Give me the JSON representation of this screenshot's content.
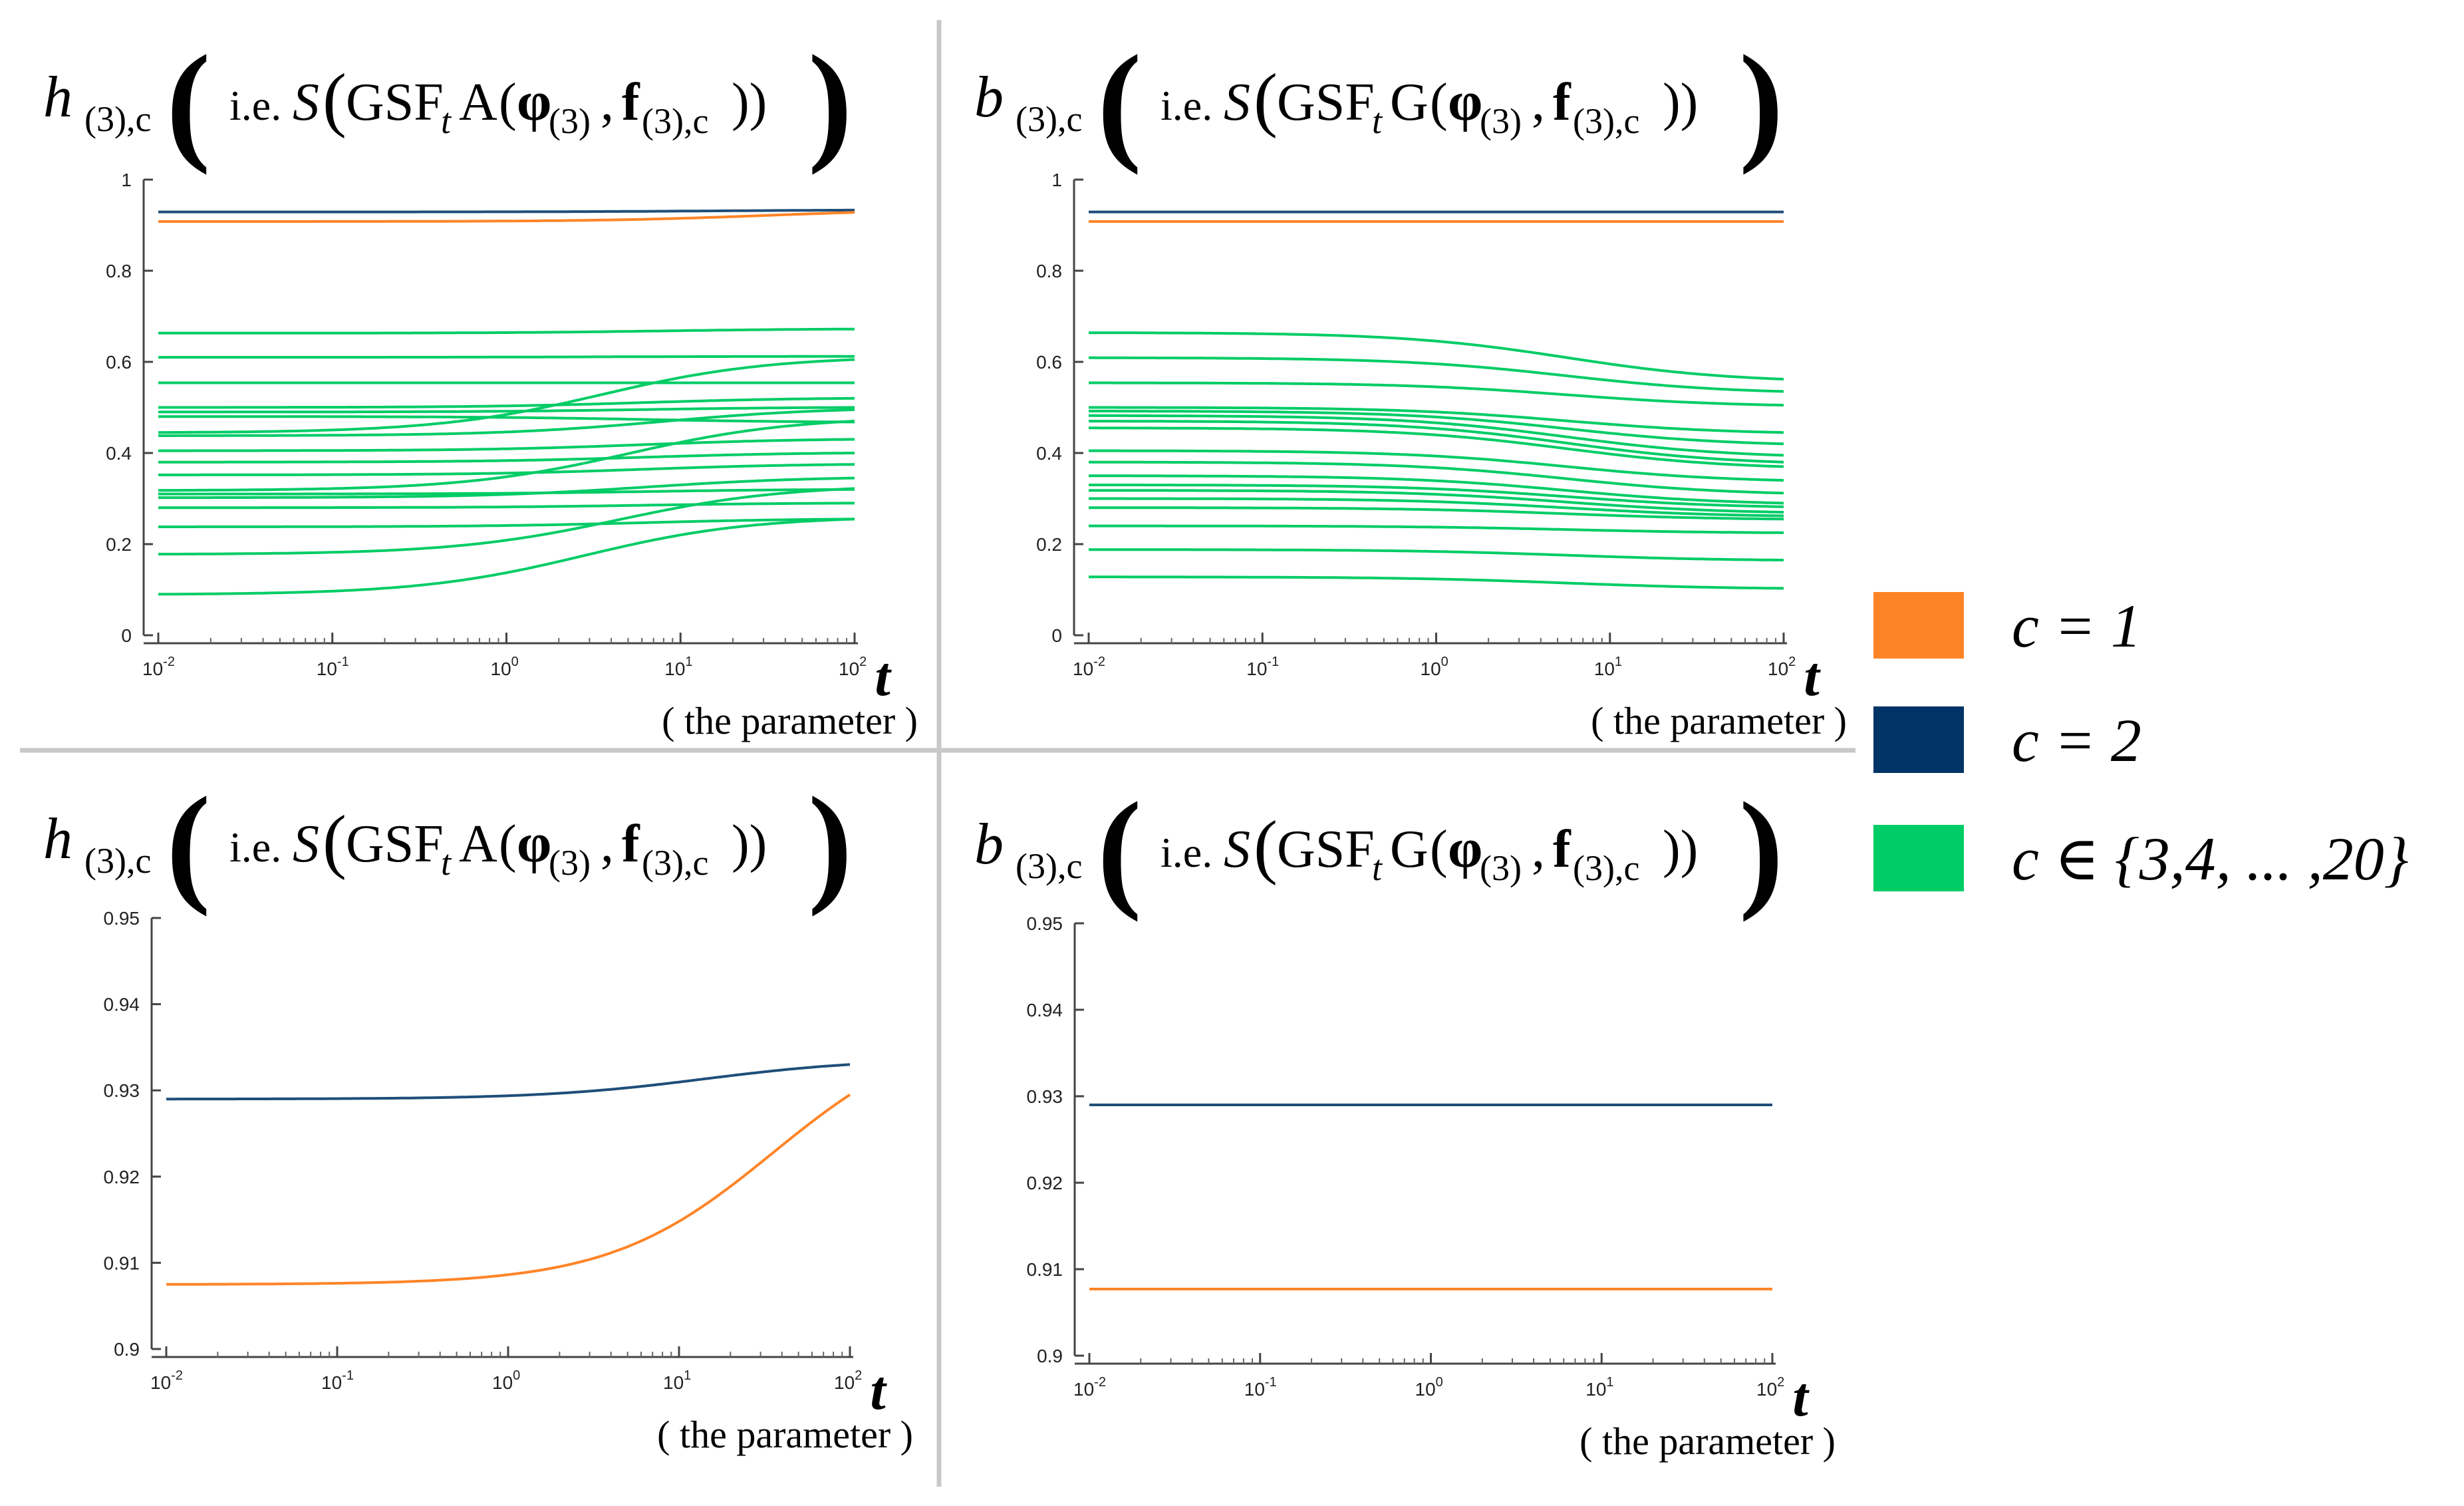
{
  "legend": {
    "items": [
      {
        "label": "c = 1",
        "color": "#ff8427"
      },
      {
        "label": "c = 2",
        "color": "#003366"
      },
      {
        "label": "c ∈ {3,4, ... ,20}",
        "color": "#00cc66"
      }
    ]
  },
  "chart_data": [
    {
      "type": "line",
      "title": {
        "symbol": "h",
        "sub": "(3),c",
        "ie": "i.e.",
        "S": "S",
        "gsf": "GSF",
        "t": "t",
        "op": "A",
        "phi": "φ",
        "phisub": "(3)",
        "f": "f",
        "fsub": "(3),c"
      },
      "xscale": "log",
      "xlim": [
        0.01,
        100
      ],
      "ylim": [
        0,
        1
      ],
      "xlabel": "t",
      "xlabel_note": "( the parameter )",
      "yticks": [
        "0",
        "0.2",
        "0.4",
        "0.6",
        "0.8",
        "1"
      ],
      "xticks": [
        {
          "base": "10",
          "exp": "-2"
        },
        {
          "base": "10",
          "exp": "-1"
        },
        {
          "base": "10",
          "exp": "0"
        },
        {
          "base": "10",
          "exp": "1"
        },
        {
          "base": "10",
          "exp": "2"
        }
      ],
      "series": [
        {
          "name": "c = 2",
          "color": "#1f4e79",
          "start": 0.929,
          "end": 0.933,
          "mid": 1.2
        },
        {
          "name": "c = 1",
          "color": "#ff8427",
          "start": 0.908,
          "end": 0.928,
          "mid": 1.5
        },
        {
          "name": "c = 3",
          "color": "#00cc66",
          "start": 0.663,
          "end": 0.672,
          "mid": 0.9
        },
        {
          "name": "c = 4",
          "color": "#00cc66",
          "start": 0.61,
          "end": 0.612,
          "mid": 0.5
        },
        {
          "name": "c = 5",
          "color": "#00cc66",
          "start": 0.554,
          "end": 0.554,
          "mid": 0.5
        },
        {
          "name": "c = 6",
          "color": "#00cc66",
          "start": 0.5,
          "end": 0.52,
          "mid": 0.8
        },
        {
          "name": "c = 7",
          "color": "#00cc66",
          "start": 0.49,
          "end": 0.5,
          "mid": 0.8
        },
        {
          "name": "c = 8",
          "color": "#00cc66",
          "start": 0.48,
          "end": 0.468,
          "mid": 0.8
        },
        {
          "name": "c = 9",
          "color": "#00cc66",
          "start": 0.445,
          "end": 0.605,
          "mid": 0.55
        },
        {
          "name": "c = 10",
          "color": "#00cc66",
          "start": 0.438,
          "end": 0.495,
          "mid": 0.9
        },
        {
          "name": "c = 11",
          "color": "#00cc66",
          "start": 0.405,
          "end": 0.43,
          "mid": 0.8
        },
        {
          "name": "c = 12",
          "color": "#00cc66",
          "start": 0.38,
          "end": 0.4,
          "mid": 0.8
        },
        {
          "name": "c = 13",
          "color": "#00cc66",
          "start": 0.352,
          "end": 0.375,
          "mid": 0.8
        },
        {
          "name": "c = 14",
          "color": "#00cc66",
          "start": 0.318,
          "end": 0.47,
          "mid": 0.7
        },
        {
          "name": "c = 15",
          "color": "#00cc66",
          "start": 0.31,
          "end": 0.32,
          "mid": 0.8
        },
        {
          "name": "c = 16",
          "color": "#00cc66",
          "start": 0.302,
          "end": 0.345,
          "mid": 0.8
        },
        {
          "name": "c = 17",
          "color": "#00cc66",
          "start": 0.28,
          "end": 0.29,
          "mid": 0.8
        },
        {
          "name": "c = 18",
          "color": "#00cc66",
          "start": 0.238,
          "end": 0.255,
          "mid": 0.8
        },
        {
          "name": "c = 19",
          "color": "#00cc66",
          "start": 0.178,
          "end": 0.322,
          "mid": 0.65
        },
        {
          "name": "c = 20",
          "color": "#00cc66",
          "start": 0.09,
          "end": 0.255,
          "mid": 0.45
        }
      ]
    },
    {
      "type": "line",
      "title": {
        "symbol": "b",
        "sub": "(3),c",
        "ie": "i.e.",
        "S": "S",
        "gsf": "GSF",
        "t": "t",
        "op": "G",
        "phi": "φ",
        "phisub": "(3)",
        "f": "f",
        "fsub": "(3),c"
      },
      "xscale": "log",
      "xlim": [
        0.01,
        100
      ],
      "ylim": [
        0,
        1
      ],
      "xlabel": "t",
      "xlabel_note": "( the parameter )",
      "yticks": [
        "0",
        "0.2",
        "0.4",
        "0.6",
        "0.8",
        "1"
      ],
      "xticks": [
        {
          "base": "10",
          "exp": "-2"
        },
        {
          "base": "10",
          "exp": "-1"
        },
        {
          "base": "10",
          "exp": "0"
        },
        {
          "base": "10",
          "exp": "1"
        },
        {
          "base": "10",
          "exp": "2"
        }
      ],
      "series": [
        {
          "name": "c = 2",
          "color": "#1f4e79",
          "start": 0.929,
          "end": 0.929,
          "mid": 1.0
        },
        {
          "name": "c = 1",
          "color": "#ff8427",
          "start": 0.908,
          "end": 0.908,
          "mid": 1.0
        },
        {
          "name": "c = 3",
          "color": "#00cc66",
          "start": 0.664,
          "end": 0.562,
          "mid": 0.75
        },
        {
          "name": "c = 4",
          "color": "#00cc66",
          "start": 0.609,
          "end": 0.535,
          "mid": 0.75
        },
        {
          "name": "c = 5",
          "color": "#00cc66",
          "start": 0.554,
          "end": 0.505,
          "mid": 0.75
        },
        {
          "name": "c = 6",
          "color": "#00cc66",
          "start": 0.5,
          "end": 0.445,
          "mid": 0.75
        },
        {
          "name": "c = 7",
          "color": "#00cc66",
          "start": 0.492,
          "end": 0.42,
          "mid": 0.75
        },
        {
          "name": "c = 8",
          "color": "#00cc66",
          "start": 0.482,
          "end": 0.395,
          "mid": 0.75
        },
        {
          "name": "c = 9",
          "color": "#00cc66",
          "start": 0.47,
          "end": 0.38,
          "mid": 0.75
        },
        {
          "name": "c = 10",
          "color": "#00cc66",
          "start": 0.455,
          "end": 0.37,
          "mid": 0.75
        },
        {
          "name": "c = 11",
          "color": "#00cc66",
          "start": 0.405,
          "end": 0.34,
          "mid": 0.75
        },
        {
          "name": "c = 12",
          "color": "#00cc66",
          "start": 0.38,
          "end": 0.312,
          "mid": 0.75
        },
        {
          "name": "c = 13",
          "color": "#00cc66",
          "start": 0.35,
          "end": 0.29,
          "mid": 0.75
        },
        {
          "name": "c = 14",
          "color": "#00cc66",
          "start": 0.33,
          "end": 0.282,
          "mid": 0.75
        },
        {
          "name": "c = 15",
          "color": "#00cc66",
          "start": 0.318,
          "end": 0.27,
          "mid": 0.75
        },
        {
          "name": "c = 16",
          "color": "#00cc66",
          "start": 0.3,
          "end": 0.262,
          "mid": 0.75
        },
        {
          "name": "c = 17",
          "color": "#00cc66",
          "start": 0.28,
          "end": 0.255,
          "mid": 0.75
        },
        {
          "name": "c = 18",
          "color": "#00cc66",
          "start": 0.24,
          "end": 0.225,
          "mid": 0.75
        },
        {
          "name": "c = 19",
          "color": "#00cc66",
          "start": 0.188,
          "end": 0.165,
          "mid": 0.75
        },
        {
          "name": "c = 20",
          "color": "#00cc66",
          "start": 0.128,
          "end": 0.103,
          "mid": 0.75
        }
      ]
    },
    {
      "type": "line",
      "title": {
        "symbol": "h",
        "sub": "(3),c",
        "ie": "i.e.",
        "S": "S",
        "gsf": "GSF",
        "t": "t",
        "op": "A",
        "phi": "φ",
        "phisub": "(3)",
        "f": "f",
        "fsub": "(3),c"
      },
      "xscale": "log",
      "xlim": [
        0.01,
        100
      ],
      "ylim": [
        0.9,
        0.95
      ],
      "xlabel": "t",
      "xlabel_note": "( the parameter )",
      "yticks": [
        "0.9",
        "0.91",
        "0.92",
        "0.93",
        "0.94",
        "0.95"
      ],
      "xticks": [
        {
          "base": "10",
          "exp": "-2"
        },
        {
          "base": "10",
          "exp": "-1"
        },
        {
          "base": "10",
          "exp": "0"
        },
        {
          "base": "10",
          "exp": "1"
        },
        {
          "base": "10",
          "exp": "2"
        }
      ],
      "series": [
        {
          "name": "c = 2",
          "color": "#1f4e79",
          "start": 0.929,
          "end": 0.933,
          "mid": 1.15
        },
        {
          "name": "c = 1",
          "color": "#ff8427",
          "start": 0.9075,
          "end": 0.9295,
          "mid": 1.55
        }
      ]
    },
    {
      "type": "line",
      "title": {
        "symbol": "b",
        "sub": "(3),c",
        "ie": "i.e.",
        "S": "S",
        "gsf": "GSF",
        "t": "t",
        "op": "G",
        "phi": "φ",
        "phisub": "(3)",
        "f": "f",
        "fsub": "(3),c"
      },
      "xscale": "log",
      "xlim": [
        0.01,
        100
      ],
      "ylim": [
        0.9,
        0.95
      ],
      "xlabel": "t",
      "xlabel_note": "( the parameter )",
      "yticks": [
        "0.9",
        "0.91",
        "0.92",
        "0.93",
        "0.94",
        "0.95"
      ],
      "xticks": [
        {
          "base": "10",
          "exp": "-2"
        },
        {
          "base": "10",
          "exp": "-1"
        },
        {
          "base": "10",
          "exp": "0"
        },
        {
          "base": "10",
          "exp": "1"
        },
        {
          "base": "10",
          "exp": "2"
        }
      ],
      "series": [
        {
          "name": "c = 2",
          "color": "#1f4e79",
          "start": 0.929,
          "end": 0.929,
          "mid": 1.0
        },
        {
          "name": "c = 1",
          "color": "#ff8427",
          "start": 0.9077,
          "end": 0.9077,
          "mid": 1.0
        }
      ]
    }
  ]
}
